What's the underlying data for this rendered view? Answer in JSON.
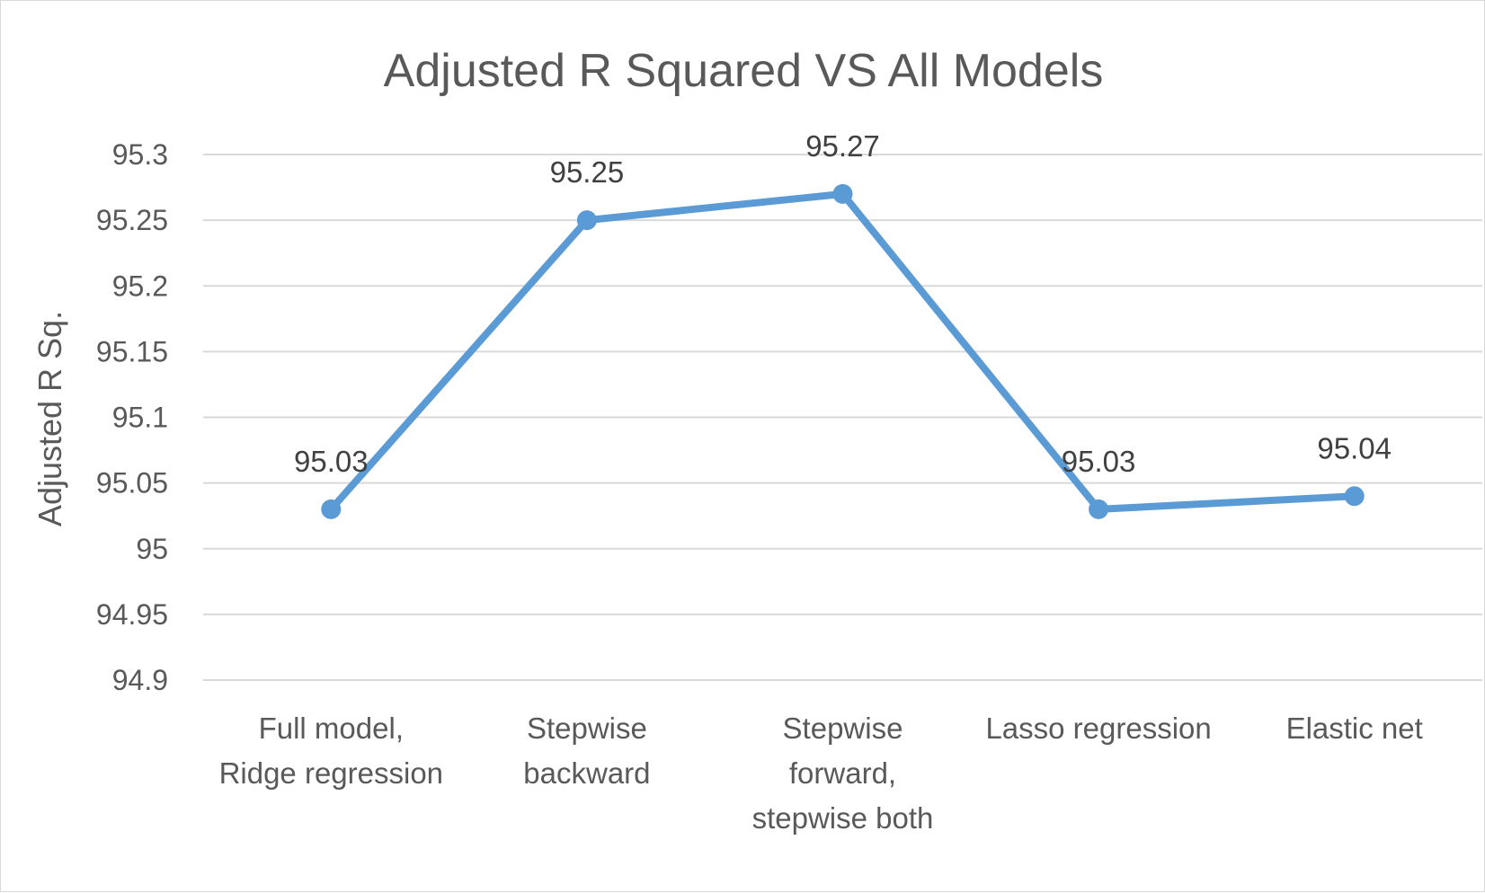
{
  "chart_data": {
    "type": "line",
    "title": "Adjusted R Squared VS All Models",
    "xlabel": "",
    "ylabel": "Adjusted R  Sq.",
    "categories": [
      [
        "Full model,",
        "Ridge regression"
      ],
      [
        "Stepwise",
        "backward"
      ],
      [
        "Stepwise",
        "forward,",
        "stepwise both"
      ],
      [
        "Lasso regression"
      ],
      [
        "Elastic net"
      ]
    ],
    "series": [
      {
        "values": [
          95.03,
          95.25,
          95.27,
          95.03,
          95.04
        ],
        "data_labels": [
          "95.03",
          "95.25",
          "95.27",
          "95.03",
          "95.04"
        ],
        "color": "#5B9BD5"
      }
    ],
    "ylim": [
      94.9,
      95.3
    ],
    "yticks": [
      "95.3",
      "95.25",
      "95.2",
      "95.15",
      "95.1",
      "95.05",
      "95",
      "94.95",
      "94.9"
    ],
    "grid": true,
    "legend": "none"
  }
}
